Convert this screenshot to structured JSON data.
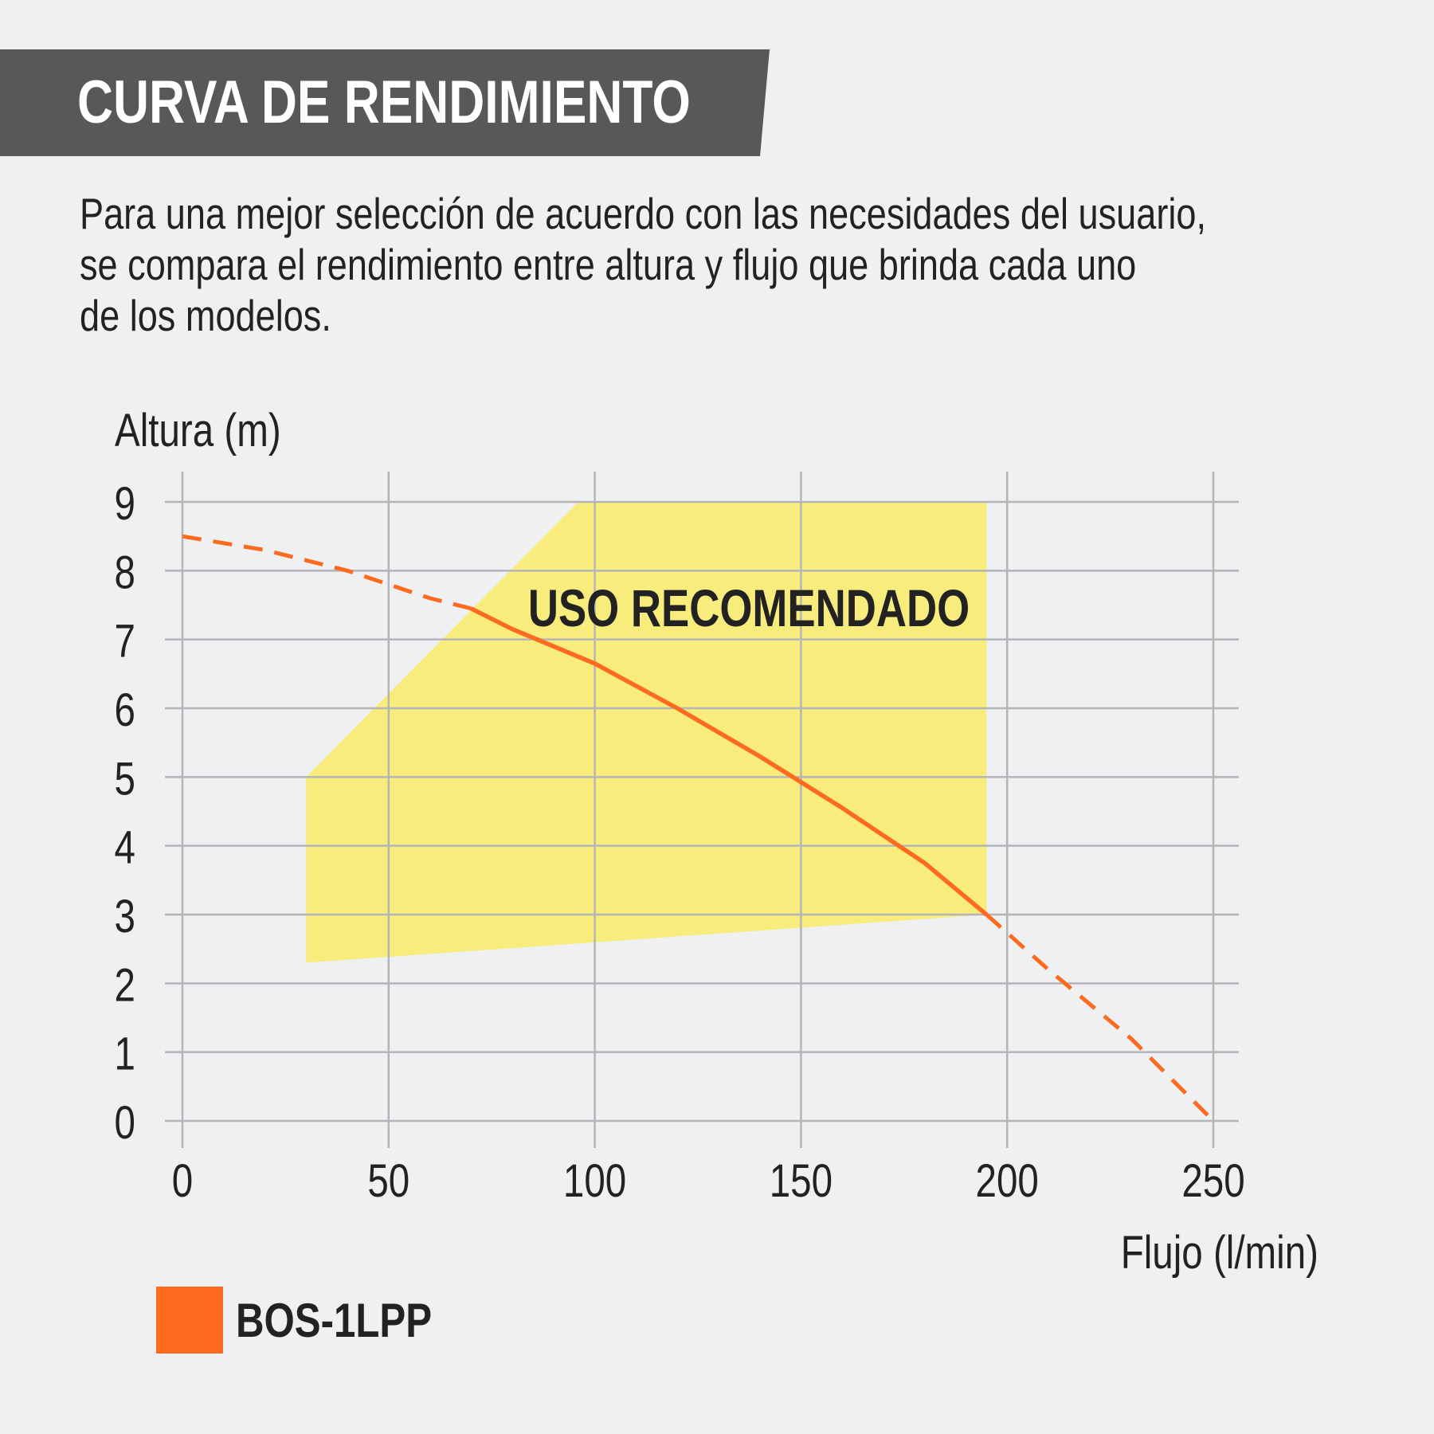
{
  "header": {
    "title": "CURVA DE RENDIMIENTO"
  },
  "intro": {
    "lines": [
      "Para una mejor selección de acuerdo con las necesidades del usuario,",
      "se compara el rendimiento entre altura y flujo que brinda cada uno",
      "de los modelos."
    ]
  },
  "chart_data": {
    "type": "line",
    "title": "",
    "xlabel": "Flujo (l/min)",
    "ylabel": "Altura (m)",
    "xlim": [
      0,
      250
    ],
    "ylim": [
      0,
      9
    ],
    "xticks": [
      0,
      50,
      100,
      150,
      200,
      250
    ],
    "yticks": [
      0,
      1,
      2,
      3,
      4,
      5,
      6,
      7,
      8,
      9
    ],
    "grid": true,
    "recommended_zone": {
      "label": "USO RECOMENDADO",
      "color": "#f7ec7c",
      "polygon": [
        [
          30,
          2.3
        ],
        [
          30,
          5
        ],
        [
          96,
          9
        ],
        [
          195,
          9
        ],
        [
          195,
          3
        ]
      ]
    },
    "series": [
      {
        "name": "BOS-1LPP",
        "color": "#fd6b21",
        "x": [
          0,
          20,
          40,
          60,
          70,
          80,
          100,
          120,
          140,
          160,
          180,
          195,
          210,
          230,
          250
        ],
        "y": [
          8.5,
          8.3,
          8.0,
          7.6,
          7.45,
          7.15,
          6.65,
          6.0,
          5.3,
          4.55,
          3.75,
          3.0,
          2.2,
          1.2,
          0.0
        ],
        "solid_range": [
          70,
          195
        ]
      }
    ],
    "legend": {
      "position": "bottom-left"
    }
  }
}
